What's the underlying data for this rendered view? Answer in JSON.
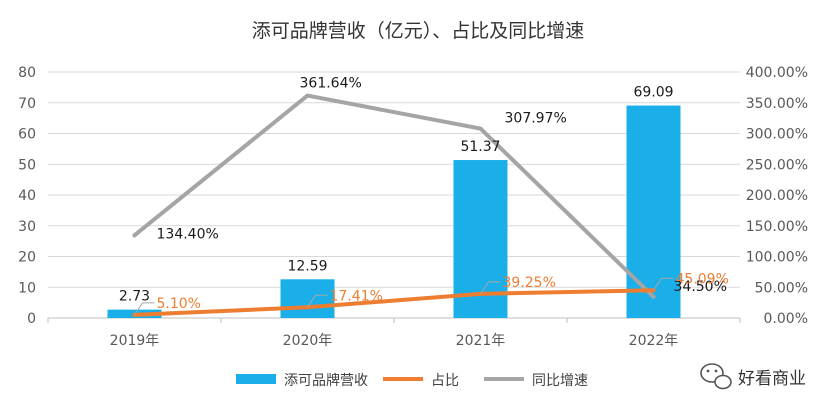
{
  "chart_data": {
    "type": "bar",
    "title": "添可品牌营收（亿元）、占比及同比增速",
    "categories": [
      "2019年",
      "2020年",
      "2021年",
      "2022年"
    ],
    "series": [
      {
        "name": "添可品牌营收",
        "kind": "bar",
        "axis": "left",
        "values": [
          2.73,
          12.59,
          51.37,
          69.09
        ],
        "labels": [
          "2.73",
          "12.59",
          "51.37",
          "69.09"
        ]
      },
      {
        "name": "占比",
        "kind": "line",
        "axis": "right",
        "values": [
          5.1,
          17.41,
          39.25,
          45.09
        ],
        "labels": [
          "5.10%",
          "17.41%",
          "39.25%",
          "45.09%"
        ]
      },
      {
        "name": "同比增速",
        "kind": "line",
        "axis": "right",
        "values": [
          134.4,
          361.64,
          307.97,
          34.5
        ],
        "labels": [
          "134.40%",
          "361.64%",
          "307.97%",
          "34.50%"
        ]
      }
    ],
    "y_left": {
      "min": 0,
      "max": 80,
      "step": 10,
      "ticks": [
        "0",
        "10",
        "20",
        "30",
        "40",
        "50",
        "60",
        "70",
        "80"
      ]
    },
    "y_right": {
      "min": 0,
      "max": 400,
      "step": 50,
      "ticks": [
        "0.00%",
        "50.00%",
        "100.00%",
        "150.00%",
        "200.00%",
        "250.00%",
        "300.00%",
        "350.00%",
        "400.00%"
      ]
    },
    "grid": true,
    "legend_position": "bottom"
  },
  "colors": {
    "bar": "#1AAFE9",
    "share": "#ED7D31",
    "growth": "#A5A5A5",
    "grid": "#D9D9D9",
    "axis": "#BFBFBF"
  },
  "watermark": {
    "text": "好看商业",
    "icon": "wechat-icon"
  }
}
